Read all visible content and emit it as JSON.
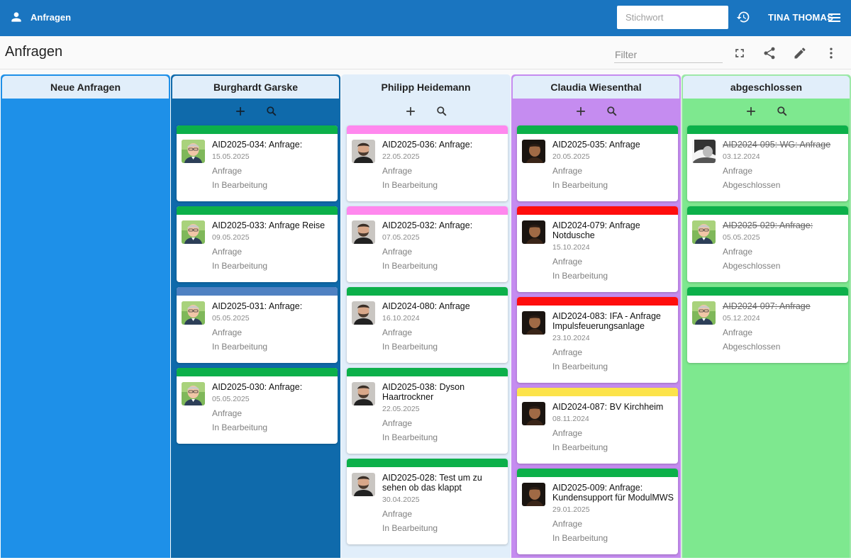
{
  "appbar": {
    "title": "Anfragen",
    "search_placeholder": "Stichwort",
    "username": "TINA THOMAS",
    "color": "#1a75c0"
  },
  "toolbar": {
    "page_title": "Anfragen",
    "filter_placeholder": "Filter",
    "icons": [
      "fullscreen-icon",
      "share-icon",
      "edit-icon",
      "more-vert-icon"
    ]
  },
  "strip_colors": {
    "green": "#0cb04a",
    "pink": "#ff88ee",
    "blue": "#4f81c2",
    "red": "#ff0d0d",
    "yellow": "#fce34a"
  },
  "columns": [
    {
      "name": "Neue Anfragen",
      "bg": "#1e90e8",
      "border": "#1e90e8",
      "cards": []
    },
    {
      "name": "Burghardt Garske",
      "bg": "#0f6aab",
      "border": "#0f6aab",
      "cards": [
        {
          "title": "AID2025-034: Anfrage:",
          "date": "15.05.2025",
          "type": "Anfrage",
          "status": "In Bearbeitung",
          "strip": "green",
          "avatar": "light",
          "done": false
        },
        {
          "title": "AID2025-033: Anfrage Reise",
          "date": "09.05.2025",
          "type": "Anfrage",
          "status": "In Bearbeitung",
          "strip": "green",
          "avatar": "light",
          "done": false
        },
        {
          "title": "AID2025-031: Anfrage:",
          "date": "05.05.2025",
          "type": "Anfrage",
          "status": "In Bearbeitung",
          "strip": "blue",
          "avatar": "light",
          "done": false
        },
        {
          "title": "AID2025-030: Anfrage:",
          "date": "05.05.2025",
          "type": "Anfrage",
          "status": "In Bearbeitung",
          "strip": "green",
          "avatar": "light",
          "done": false
        }
      ]
    },
    {
      "name": "Philipp Heidemann",
      "bg": "#e1eefa",
      "border": "#e1eefa",
      "cards": [
        {
          "title": "AID2025-036: Anfrage:",
          "date": "22.05.2025",
          "type": "Anfrage",
          "status": "In Bearbeitung",
          "strip": "pink",
          "avatar": "beard",
          "done": false
        },
        {
          "title": "AID2025-032: Anfrage:",
          "date": "07.05.2025",
          "type": "Anfrage",
          "status": "In Bearbeitung",
          "strip": "pink",
          "avatar": "beard",
          "done": false
        },
        {
          "title": "AID2024-080: Anfrage",
          "date": "16.10.2024",
          "type": "Anfrage",
          "status": "In Bearbeitung",
          "strip": "green",
          "avatar": "beard",
          "done": false
        },
        {
          "title": "AID2025-038: Dyson Haartrockner",
          "date": "22.05.2025",
          "type": "Anfrage",
          "status": "In Bearbeitung",
          "strip": "green",
          "avatar": "beard",
          "done": false
        },
        {
          "title": "AID2025-028: Test um zu sehen ob das klappt",
          "date": "30.04.2025",
          "type": "Anfrage",
          "status": "In Bearbeitung",
          "strip": "green",
          "avatar": "beard",
          "done": false
        }
      ]
    },
    {
      "name": "Claudia Wiesenthal",
      "bg": "#c58cf0",
      "border": "#c58cf0",
      "cards": [
        {
          "title": "AID2025-035: Anfrage",
          "date": "20.05.2025",
          "type": "Anfrage",
          "status": "In Bearbeitung",
          "strip": "green",
          "avatar": "dark",
          "done": false
        },
        {
          "title": "AID2024-079: Anfrage Notdusche",
          "date": "15.10.2024",
          "type": "Anfrage",
          "status": "In Bearbeitung",
          "strip": "red",
          "avatar": "dark",
          "done": false
        },
        {
          "title": "AID2024-083: IFA - Anfrage Impulsfeuerungsanlage",
          "date": "23.10.2024",
          "type": "Anfrage",
          "status": "In Bearbeitung",
          "strip": "red",
          "avatar": "dark",
          "done": false
        },
        {
          "title": "AID2024-087: BV Kirchheim",
          "date": "08.11.2024",
          "type": "Anfrage",
          "status": "In Bearbeitung",
          "strip": "yellow",
          "avatar": "dark",
          "done": false
        },
        {
          "title": "AID2025-009: Anfrage: Kundensupport für ModulMWS",
          "date": "29.01.2025",
          "type": "Anfrage",
          "status": "In Bearbeitung",
          "strip": "green",
          "avatar": "dark",
          "done": false
        }
      ]
    },
    {
      "name": "abgeschlossen",
      "bg": "#7ee88f",
      "border": "#9ee8a9",
      "cards": [
        {
          "title": "AID2024-095: WG: Anfrage",
          "date": "03.12.2024",
          "type": "Anfrage",
          "status": "Abgeschlossen",
          "strip": "green",
          "avatar": "bw",
          "done": true
        },
        {
          "title": "AID2025-029: Anfrage:",
          "date": "05.05.2025",
          "type": "Anfrage",
          "status": "Abgeschlossen",
          "strip": "green",
          "avatar": "light",
          "done": true
        },
        {
          "title": "AID2024-097: Anfrage",
          "date": "05.12.2024",
          "type": "Anfrage",
          "status": "Abgeschlossen",
          "strip": "green",
          "avatar": "light",
          "done": true
        }
      ]
    }
  ]
}
